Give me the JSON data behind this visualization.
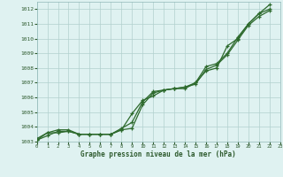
{
  "title": "Graphe pression niveau de la mer (hPa)",
  "bg_color": "#dff2f1",
  "grid_color": "#b2d0ce",
  "line_color": "#2d6a2d",
  "tick_color": "#2d5a2d",
  "xlim": [
    0,
    23
  ],
  "ylim": [
    1003.0,
    1012.5
  ],
  "yticks": [
    1003,
    1004,
    1005,
    1006,
    1007,
    1008,
    1009,
    1010,
    1011,
    1012
  ],
  "xticks": [
    0,
    1,
    2,
    3,
    4,
    5,
    6,
    7,
    8,
    9,
    10,
    11,
    12,
    13,
    14,
    15,
    16,
    17,
    18,
    19,
    20,
    21,
    22,
    23
  ],
  "series": [
    [
      1003.1,
      1003.6,
      1003.6,
      1003.7,
      1003.5,
      1003.5,
      1003.5,
      1003.5,
      1003.8,
      1004.9,
      1005.8,
      1006.1,
      1006.5,
      1006.6,
      1006.6,
      1007.0,
      1007.8,
      1008.0,
      1009.5,
      1010.0,
      1011.0,
      1011.7,
      1012.3
    ],
    [
      1003.2,
      1003.6,
      1003.8,
      1003.8,
      1003.5,
      1003.5,
      1003.5,
      1003.5,
      1003.9,
      1004.3,
      1005.7,
      1006.4,
      1006.5,
      1006.6,
      1006.7,
      1007.0,
      1008.1,
      1008.3,
      1009.0,
      1010.1,
      1011.0,
      1011.7,
      1012.0
    ],
    [
      1003.1,
      1003.4,
      1003.7,
      1003.7,
      1003.5,
      1003.5,
      1003.5,
      1003.5,
      1003.8,
      1003.9,
      1005.5,
      1006.3,
      1006.5,
      1006.6,
      1006.7,
      1006.9,
      1007.9,
      1008.2,
      1008.9,
      1009.9,
      1010.9,
      1011.5,
      1011.9
    ]
  ]
}
